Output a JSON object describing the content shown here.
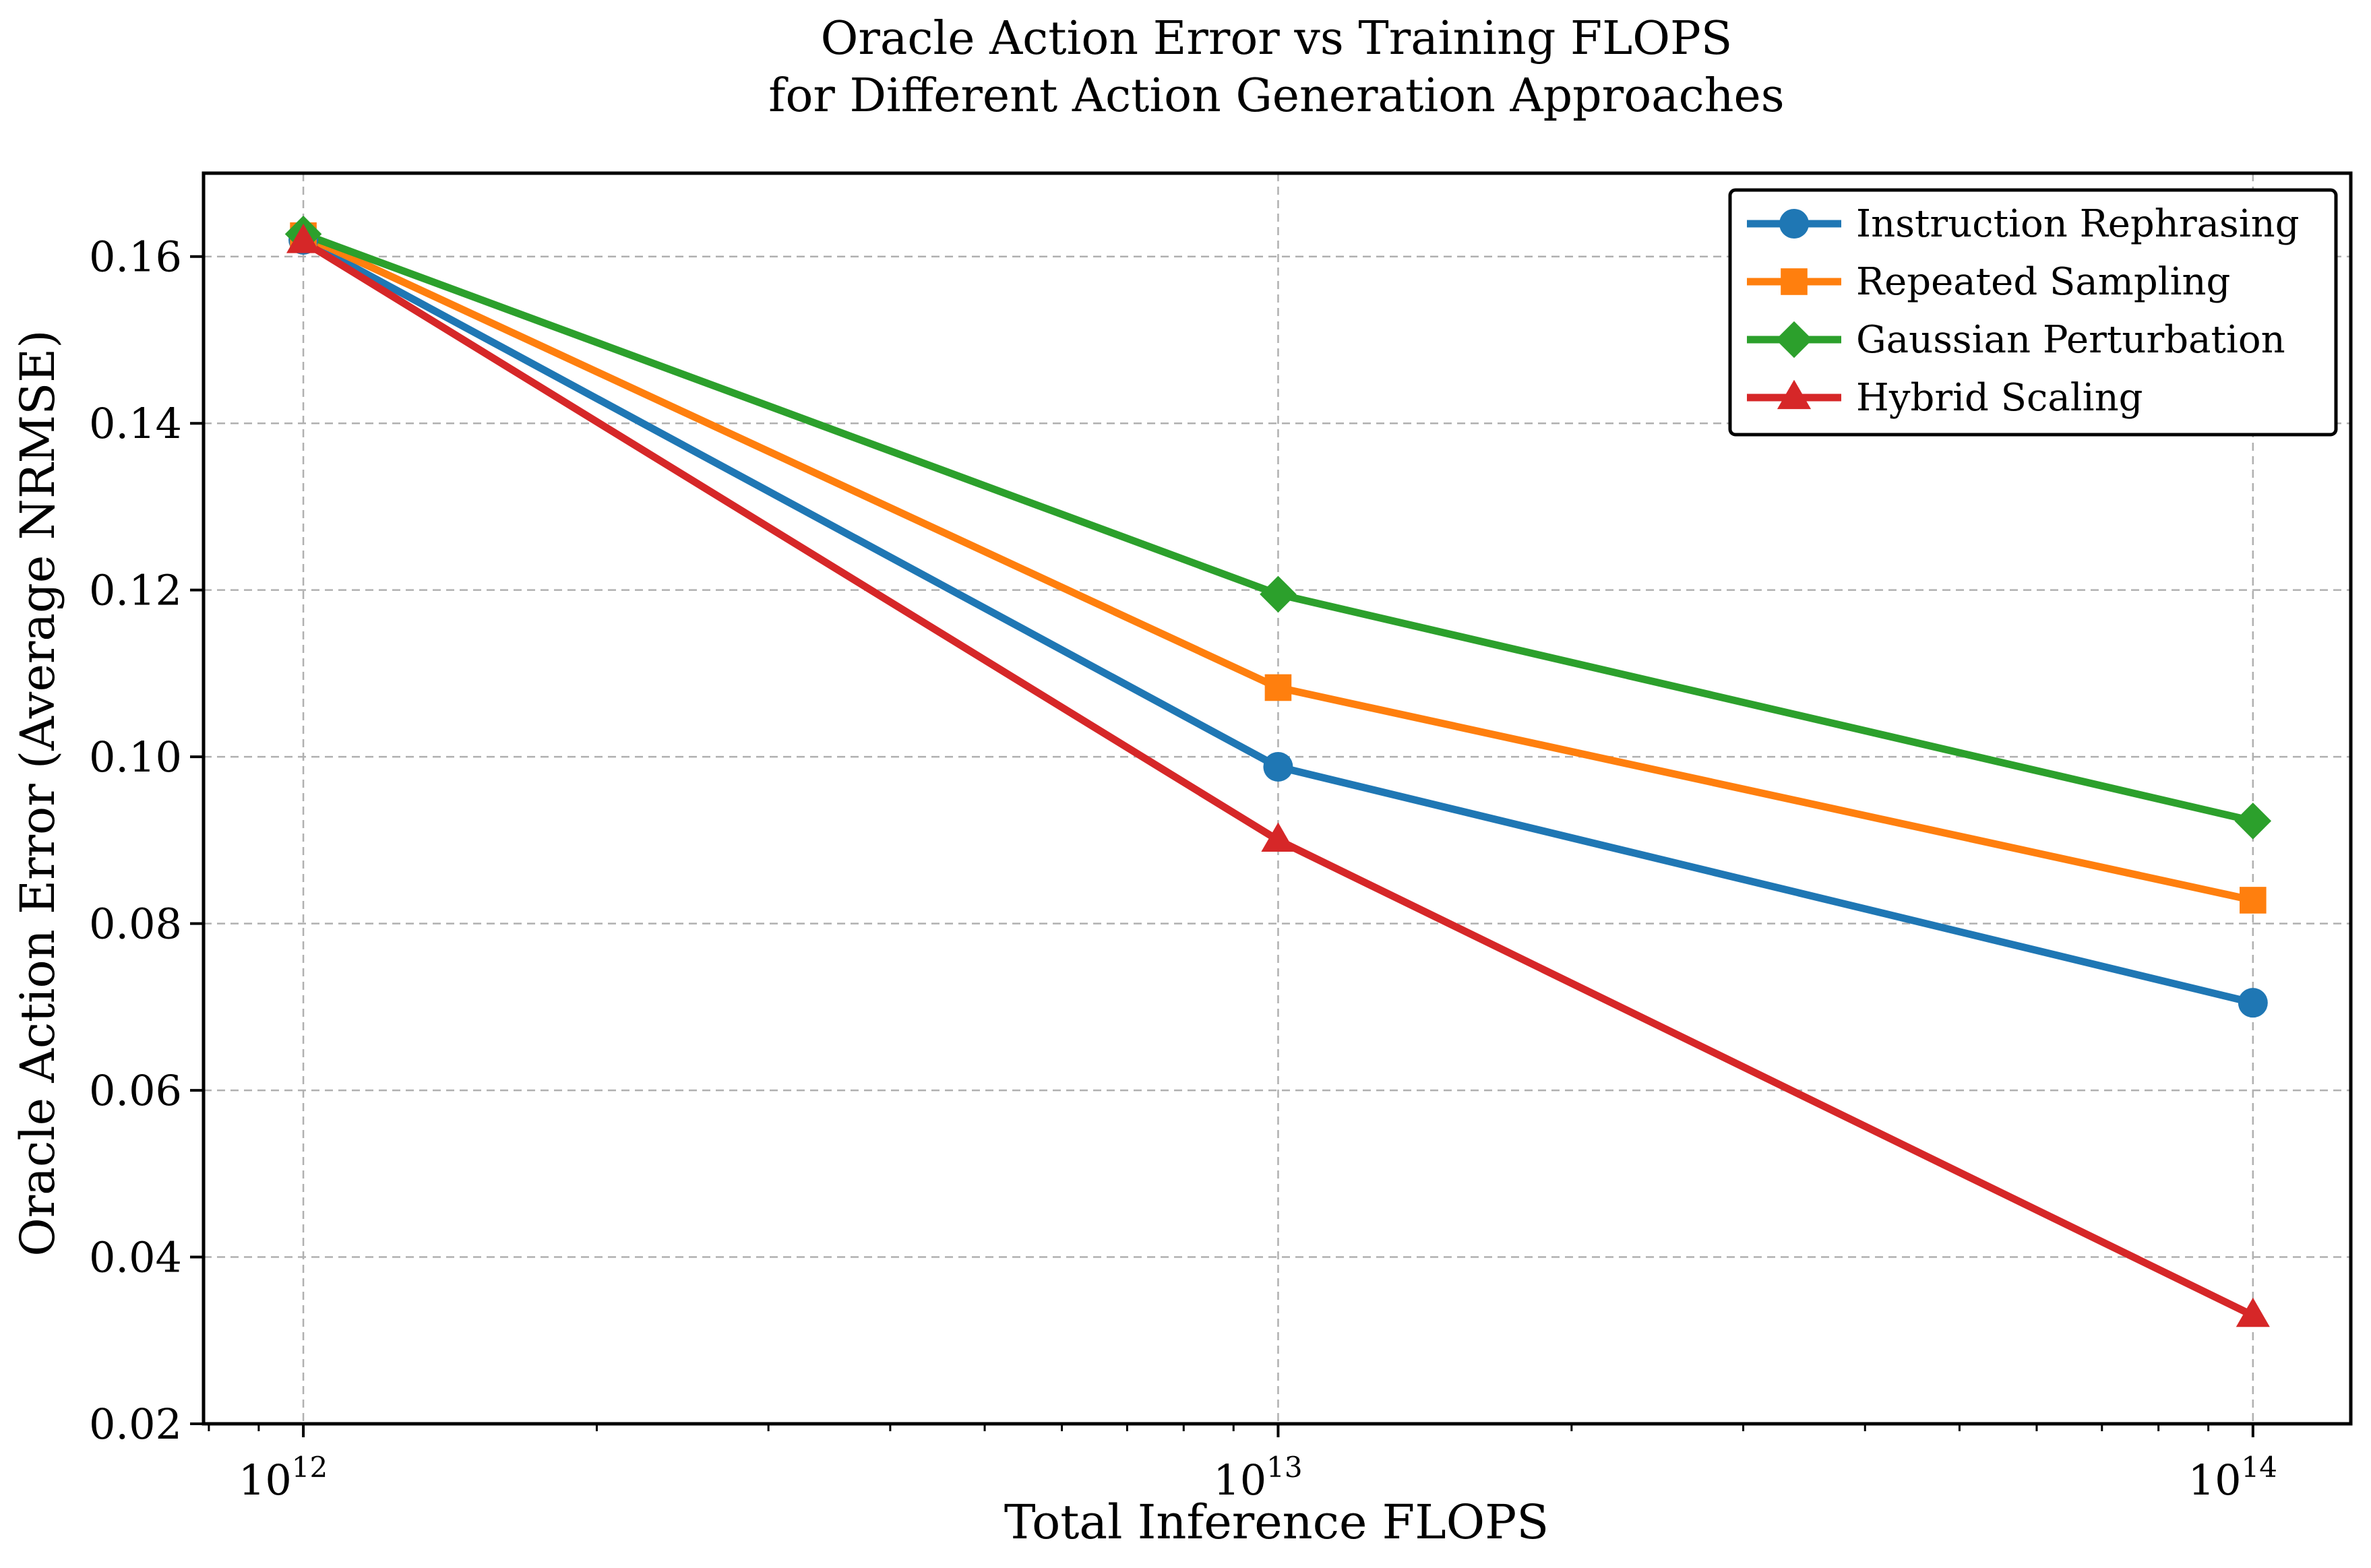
{
  "chart_data": {
    "type": "line",
    "title_line1": "Oracle Action Error vs Training FLOPS",
    "title_line2": "for Different Action Generation Approaches",
    "xlabel": "Total Inference FLOPS",
    "ylabel": "Oracle Action Error (Average NRMSE)",
    "x_scale": "log",
    "x": [
      1000000000000.0,
      10000000000000.0,
      100000000000000.0
    ],
    "xlim": [
      790000000000.0,
      126000000000000.0
    ],
    "ylim": [
      0.02,
      0.17
    ],
    "x_ticks": [
      {
        "value": 1000000000000.0,
        "base": "10",
        "exp": "12"
      },
      {
        "value": 10000000000000.0,
        "base": "10",
        "exp": "13"
      },
      {
        "value": 100000000000000.0,
        "base": "10",
        "exp": "14"
      }
    ],
    "y_ticks": [
      {
        "value": 0.02,
        "label": "0.02"
      },
      {
        "value": 0.04,
        "label": "0.04"
      },
      {
        "value": 0.06,
        "label": "0.06"
      },
      {
        "value": 0.08,
        "label": "0.08"
      },
      {
        "value": 0.1,
        "label": "0.10"
      },
      {
        "value": 0.12,
        "label": "0.12"
      },
      {
        "value": 0.14,
        "label": "0.14"
      },
      {
        "value": 0.16,
        "label": "0.16"
      }
    ],
    "grid": true,
    "legend_position": "top-right",
    "series": [
      {
        "name": "Instruction Rephrasing",
        "color": "#1f77b4",
        "marker": "circle",
        "values": [
          0.162,
          0.0988,
          0.0705
        ]
      },
      {
        "name": "Repeated Sampling",
        "color": "#ff7f0e",
        "marker": "square",
        "values": [
          0.1625,
          0.1083,
          0.0828
        ]
      },
      {
        "name": "Gaussian Perturbation",
        "color": "#2ca02c",
        "marker": "diamond",
        "values": [
          0.1627,
          0.1195,
          0.0923
        ]
      },
      {
        "name": "Hybrid Scaling",
        "color": "#d62728",
        "marker": "triangle",
        "values": [
          0.1618,
          0.09,
          0.033
        ]
      }
    ]
  }
}
